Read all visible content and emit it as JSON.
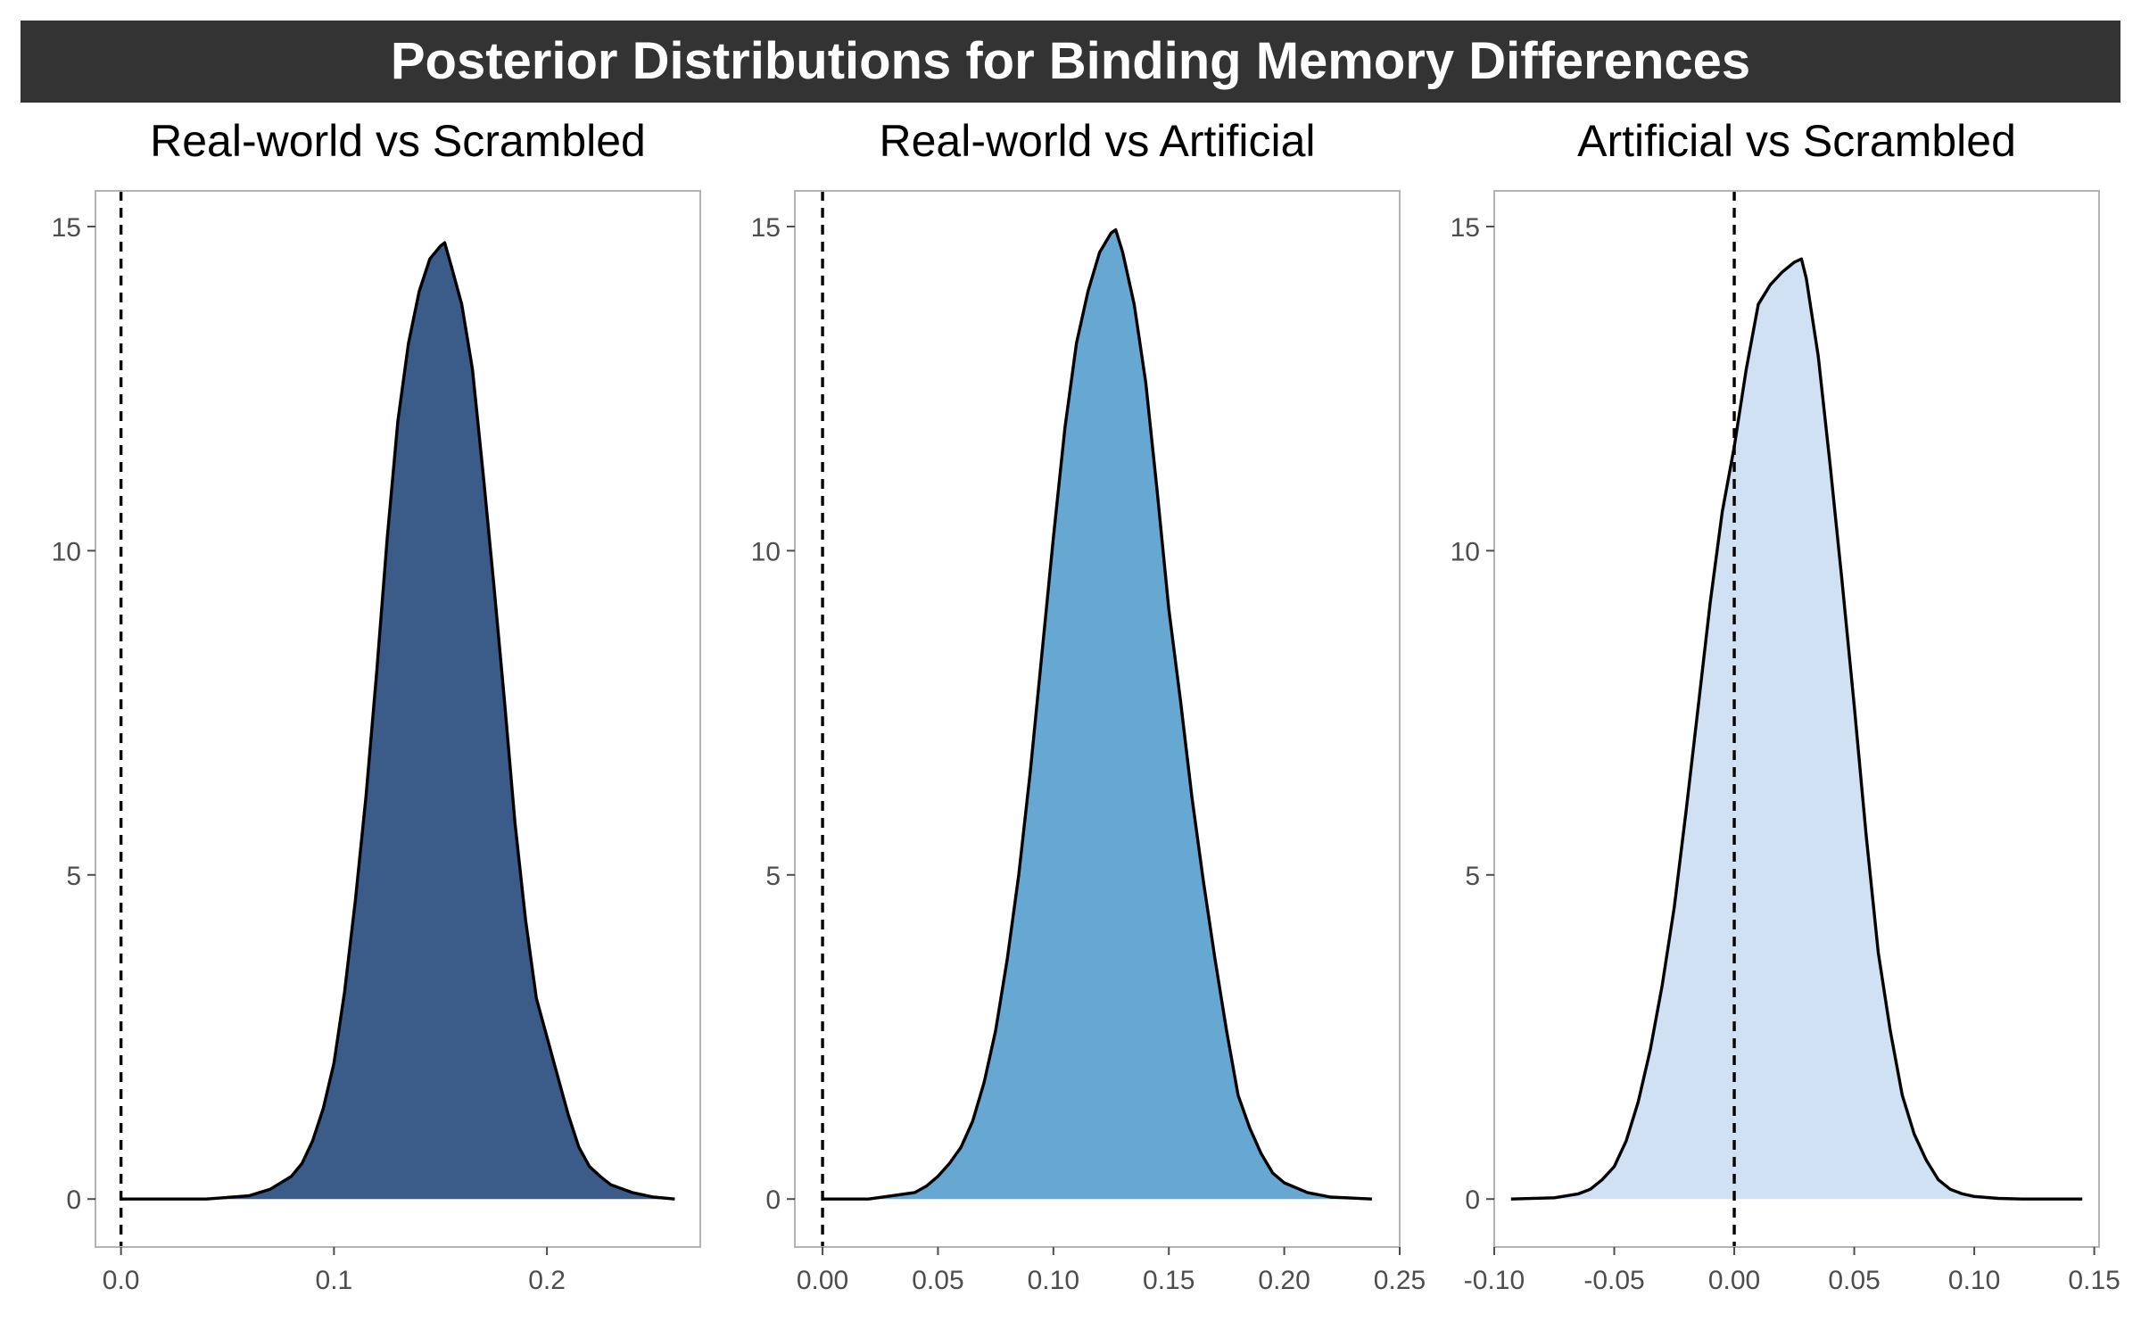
{
  "figure_title": "Posterior Distributions for Binding Memory Differences",
  "colors": {
    "title_bar": "#333333",
    "outline": "#000000",
    "panel_border": "#b3b3b3",
    "tick": "#4d4d4d"
  },
  "chart_data": [
    {
      "type": "area",
      "title": "Real-world vs Scrambled",
      "xlabel": "",
      "ylabel": "",
      "fill": "#3B5B88",
      "xlim": [
        -0.012,
        0.272
      ],
      "ylim": [
        -0.74,
        15.55
      ],
      "xticks": [
        0.0,
        0.1,
        0.2
      ],
      "xtick_labels": [
        "0.0",
        "0.1",
        "0.2"
      ],
      "yticks": [
        0,
        5,
        10,
        15
      ],
      "ytick_labels": [
        "0",
        "5",
        "10",
        "15"
      ],
      "reference_line_x": 0,
      "density": {
        "x": [
          0.0,
          0.04,
          0.06,
          0.07,
          0.08,
          0.085,
          0.09,
          0.095,
          0.1,
          0.105,
          0.11,
          0.115,
          0.12,
          0.125,
          0.13,
          0.135,
          0.14,
          0.145,
          0.15,
          0.152,
          0.155,
          0.16,
          0.165,
          0.17,
          0.175,
          0.18,
          0.185,
          0.19,
          0.195,
          0.2,
          0.205,
          0.21,
          0.215,
          0.22,
          0.225,
          0.23,
          0.24,
          0.25,
          0.26
        ],
        "y": [
          0.0,
          0.0,
          0.05,
          0.15,
          0.35,
          0.55,
          0.9,
          1.4,
          2.1,
          3.2,
          4.6,
          6.2,
          8.1,
          10.2,
          12.0,
          13.2,
          14.0,
          14.5,
          14.7,
          14.75,
          14.4,
          13.8,
          12.8,
          11.2,
          9.5,
          7.7,
          5.8,
          4.3,
          3.1,
          2.5,
          1.9,
          1.3,
          0.8,
          0.5,
          0.35,
          0.22,
          0.1,
          0.03,
          0.0
        ]
      }
    },
    {
      "type": "area",
      "title": "Real-world vs Artificial",
      "xlabel": "",
      "ylabel": "",
      "fill": "#67A8D2",
      "xlim": [
        -0.012,
        0.25
      ],
      "ylim": [
        -0.74,
        15.55
      ],
      "xticks": [
        0.0,
        0.05,
        0.1,
        0.15,
        0.2,
        0.25
      ],
      "xtick_labels": [
        "0.00",
        "0.05",
        "0.10",
        "0.15",
        "0.20",
        "0.25"
      ],
      "yticks": [
        0,
        5,
        10,
        15
      ],
      "ytick_labels": [
        "0",
        "5",
        "10",
        "15"
      ],
      "reference_line_x": 0,
      "density": {
        "x": [
          0.0,
          0.02,
          0.03,
          0.04,
          0.045,
          0.05,
          0.055,
          0.06,
          0.065,
          0.07,
          0.075,
          0.08,
          0.085,
          0.09,
          0.095,
          0.1,
          0.105,
          0.11,
          0.115,
          0.12,
          0.125,
          0.127,
          0.13,
          0.135,
          0.14,
          0.145,
          0.15,
          0.155,
          0.16,
          0.165,
          0.17,
          0.175,
          0.18,
          0.185,
          0.19,
          0.195,
          0.2,
          0.21,
          0.22,
          0.238
        ],
        "y": [
          0.0,
          0.0,
          0.05,
          0.1,
          0.2,
          0.35,
          0.55,
          0.8,
          1.2,
          1.8,
          2.6,
          3.7,
          5.0,
          6.6,
          8.4,
          10.2,
          11.9,
          13.2,
          14.0,
          14.6,
          14.9,
          14.95,
          14.6,
          13.8,
          12.6,
          10.9,
          9.1,
          7.7,
          6.2,
          4.9,
          3.7,
          2.6,
          1.6,
          1.1,
          0.7,
          0.4,
          0.25,
          0.1,
          0.03,
          0.0
        ]
      }
    },
    {
      "type": "area",
      "title": "Artificial vs Scrambled",
      "xlabel": "",
      "ylabel": "",
      "fill": "#CFE1F2",
      "xlim": [
        -0.1,
        0.152
      ],
      "ylim": [
        -0.74,
        15.55
      ],
      "xticks": [
        -0.1,
        -0.05,
        0.0,
        0.05,
        0.1,
        0.15
      ],
      "xtick_labels": [
        "-0.10",
        "-0.05",
        "0.00",
        "0.05",
        "0.10",
        "0.15"
      ],
      "yticks": [
        0,
        5,
        10,
        15
      ],
      "ytick_labels": [
        "0",
        "5",
        "10",
        "15"
      ],
      "reference_line_x": 0,
      "density": {
        "x": [
          -0.093,
          -0.075,
          -0.065,
          -0.06,
          -0.055,
          -0.05,
          -0.045,
          -0.04,
          -0.035,
          -0.03,
          -0.025,
          -0.02,
          -0.015,
          -0.01,
          -0.005,
          0.0,
          0.005,
          0.01,
          0.015,
          0.02,
          0.025,
          0.028,
          0.03,
          0.035,
          0.04,
          0.045,
          0.05,
          0.055,
          0.06,
          0.065,
          0.07,
          0.075,
          0.08,
          0.085,
          0.09,
          0.095,
          0.1,
          0.11,
          0.12,
          0.145
        ],
        "y": [
          0.0,
          0.02,
          0.08,
          0.15,
          0.3,
          0.5,
          0.9,
          1.5,
          2.3,
          3.3,
          4.5,
          6.0,
          7.6,
          9.2,
          10.6,
          11.6,
          12.8,
          13.8,
          14.1,
          14.3,
          14.45,
          14.5,
          14.2,
          13.0,
          11.3,
          9.5,
          7.6,
          5.6,
          3.8,
          2.6,
          1.6,
          1.0,
          0.6,
          0.3,
          0.15,
          0.08,
          0.04,
          0.01,
          0.0,
          0.0
        ]
      }
    }
  ]
}
